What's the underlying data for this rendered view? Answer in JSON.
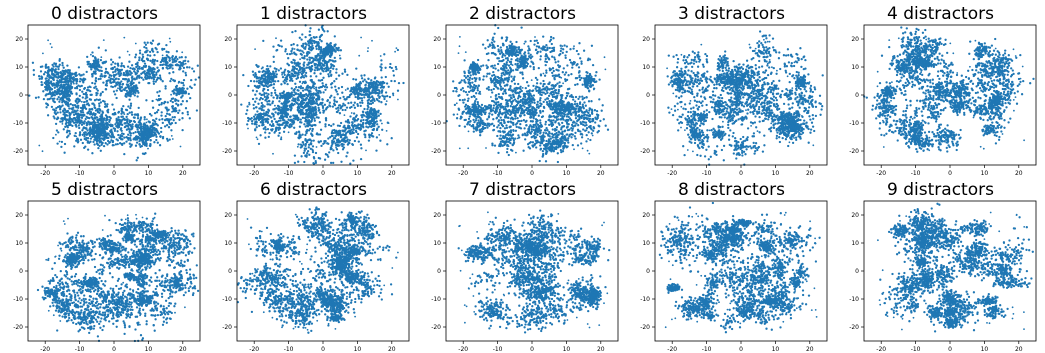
{
  "chart_data": [
    {
      "type": "scatter",
      "title": "0 distractors",
      "xlim": [
        -25,
        25
      ],
      "ylim": [
        -25,
        25
      ],
      "xticks": [
        -20,
        -10,
        0,
        10,
        20
      ],
      "yticks": [
        -20,
        -10,
        0,
        10,
        20
      ],
      "color": "#1f77b4",
      "seed": 11
    },
    {
      "type": "scatter",
      "title": "1 distractors",
      "xlim": [
        -25,
        25
      ],
      "ylim": [
        -25,
        25
      ],
      "xticks": [
        -20,
        -10,
        0,
        10,
        20
      ],
      "yticks": [
        -20,
        -10,
        0,
        10,
        20
      ],
      "color": "#1f77b4",
      "seed": 23
    },
    {
      "type": "scatter",
      "title": "2 distractors",
      "xlim": [
        -25,
        25
      ],
      "ylim": [
        -25,
        25
      ],
      "xticks": [
        -20,
        -10,
        0,
        10,
        20
      ],
      "yticks": [
        -20,
        -10,
        0,
        10,
        20
      ],
      "color": "#1f77b4",
      "seed": 37
    },
    {
      "type": "scatter",
      "title": "3 distractors",
      "xlim": [
        -25,
        25
      ],
      "ylim": [
        -25,
        25
      ],
      "xticks": [
        -20,
        -10,
        0,
        10,
        20
      ],
      "yticks": [
        -20,
        -10,
        0,
        10,
        20
      ],
      "color": "#1f77b4",
      "seed": 41
    },
    {
      "type": "scatter",
      "title": "4 distractors",
      "xlim": [
        -25,
        25
      ],
      "ylim": [
        -25,
        25
      ],
      "xticks": [
        -20,
        -10,
        0,
        10,
        20
      ],
      "yticks": [
        -20,
        -10,
        0,
        10,
        20
      ],
      "color": "#1f77b4",
      "seed": 53
    },
    {
      "type": "scatter",
      "title": "5 distractors",
      "xlim": [
        -25,
        25
      ],
      "ylim": [
        -25,
        25
      ],
      "xticks": [
        -20,
        -10,
        0,
        10,
        20
      ],
      "yticks": [
        -20,
        -10,
        0,
        10,
        20
      ],
      "color": "#1f77b4",
      "seed": 67
    },
    {
      "type": "scatter",
      "title": "6 distractors",
      "xlim": [
        -25,
        25
      ],
      "ylim": [
        -25,
        25
      ],
      "xticks": [
        -20,
        -10,
        0,
        10,
        20
      ],
      "yticks": [
        -20,
        -10,
        0,
        10,
        20
      ],
      "color": "#1f77b4",
      "seed": 71
    },
    {
      "type": "scatter",
      "title": "7 distractors",
      "xlim": [
        -25,
        25
      ],
      "ylim": [
        -25,
        25
      ],
      "xticks": [
        -20,
        -10,
        0,
        10,
        20
      ],
      "yticks": [
        -20,
        -10,
        0,
        10,
        20
      ],
      "color": "#1f77b4",
      "seed": 83
    },
    {
      "type": "scatter",
      "title": "8 distractors",
      "xlim": [
        -25,
        25
      ],
      "ylim": [
        -25,
        25
      ],
      "xticks": [
        -20,
        -10,
        0,
        10,
        20
      ],
      "yticks": [
        -20,
        -10,
        0,
        10,
        20
      ],
      "color": "#1f77b4",
      "seed": 97
    },
    {
      "type": "scatter",
      "title": "9 distractors",
      "xlim": [
        -25,
        25
      ],
      "ylim": [
        -25,
        25
      ],
      "xticks": [
        -20,
        -10,
        0,
        10,
        20
      ],
      "yticks": [
        -20,
        -10,
        0,
        10,
        20
      ],
      "color": "#1f77b4",
      "seed": 101
    }
  ]
}
